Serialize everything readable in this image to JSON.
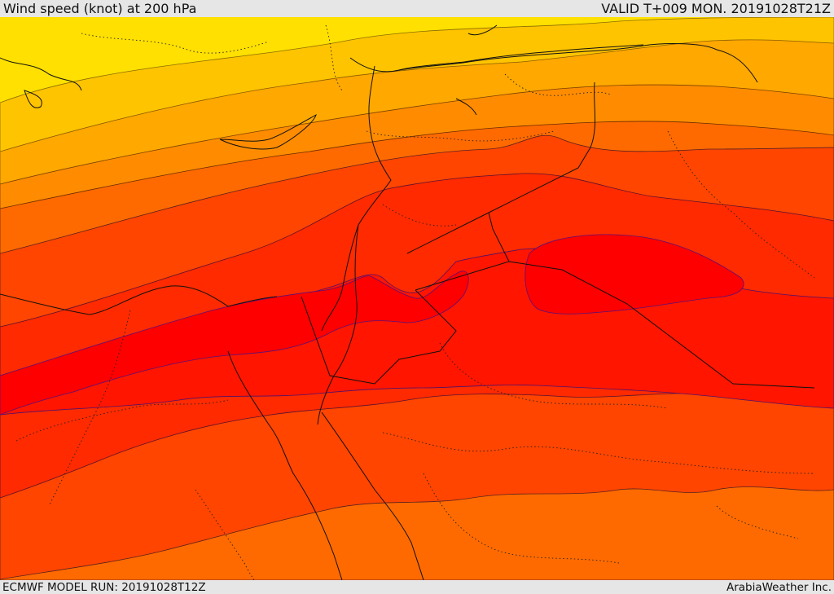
{
  "header": {
    "title": "Wind speed (knot) at 200 hPa",
    "valid": "VALID T+009 MON. 20191028T21Z"
  },
  "footer": {
    "model_run": "ECMWF MODEL RUN: 20191028T12Z",
    "credit": "ArabiaWeather Inc."
  },
  "legend_colors": {
    "band_1": "#ffe000",
    "band_2": "#ffc400",
    "band_3": "#ffa800",
    "band_4": "#ff8c00",
    "band_5": "#ff6a00",
    "band_6": "#ff4500",
    "band_7": "#ff2a00",
    "band_8": "#ff1500",
    "band_9": "#ff0000"
  }
}
